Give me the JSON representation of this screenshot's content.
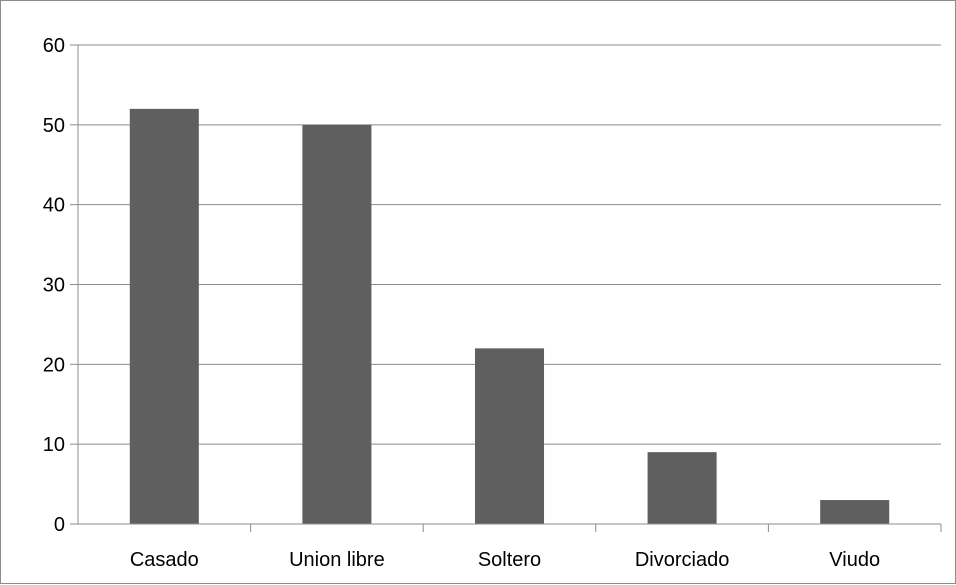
{
  "chart_data": {
    "type": "bar",
    "categories": [
      "Casado",
      "Union libre",
      "Soltero",
      "Divorciado",
      "Viudo"
    ],
    "values": [
      52,
      50,
      22,
      9,
      3
    ],
    "title": "",
    "xlabel": "",
    "ylabel": "",
    "ylim": [
      0,
      60
    ],
    "yticks": [
      0,
      10,
      20,
      30,
      40,
      50,
      60
    ],
    "grid": true,
    "legend": "none",
    "colors": {
      "bar": "#5f5f5f",
      "grid": "#8c8c8c",
      "axis": "#8c8c8c"
    }
  }
}
